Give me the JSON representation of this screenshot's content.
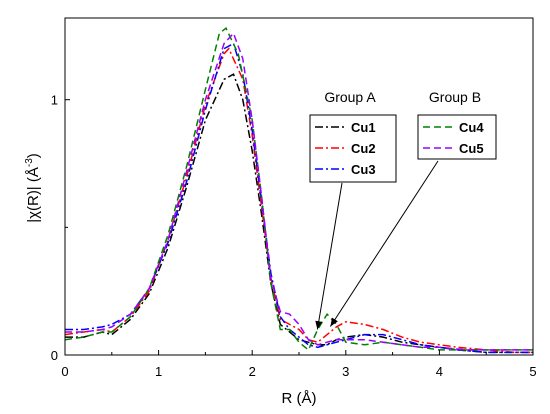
{
  "chart_data": {
    "type": "line",
    "title": "",
    "xlabel": "R (Å)",
    "ylabel_parts": [
      "|χ(R)| (Å",
      "-3",
      ")"
    ],
    "xlim": [
      0,
      5
    ],
    "ylim": [
      0,
      1.32
    ],
    "xticks": [
      0,
      1,
      2,
      3,
      4,
      5
    ],
    "xtick_labels": [
      "0",
      "1",
      "2",
      "3",
      "4",
      "5"
    ],
    "yticks": [
      0,
      1
    ],
    "ytick_labels": [
      "0",
      "1"
    ],
    "grid": false,
    "legend_groups": [
      {
        "title": "Group A",
        "series": [
          "Cu1",
          "Cu2",
          "Cu3"
        ]
      },
      {
        "title": "Group B",
        "series": [
          "Cu4",
          "Cu5"
        ]
      }
    ],
    "annotation_target": [
      2.75,
      0.1
    ],
    "series": [
      {
        "name": "Cu1",
        "color": "#000000",
        "dash": "dash-dot",
        "points": [
          [
            0,
            0.07
          ],
          [
            0.2,
            0.07
          ],
          [
            0.4,
            0.09
          ],
          [
            0.5,
            0.08
          ],
          [
            0.7,
            0.14
          ],
          [
            0.9,
            0.24
          ],
          [
            1.1,
            0.42
          ],
          [
            1.3,
            0.66
          ],
          [
            1.5,
            0.92
          ],
          [
            1.7,
            1.08
          ],
          [
            1.8,
            1.1
          ],
          [
            1.9,
            1.0
          ],
          [
            2.0,
            0.8
          ],
          [
            2.1,
            0.55
          ],
          [
            2.2,
            0.28
          ],
          [
            2.3,
            0.12
          ],
          [
            2.4,
            0.09
          ],
          [
            2.5,
            0.06
          ],
          [
            2.6,
            0.05
          ],
          [
            2.7,
            0.04
          ],
          [
            2.8,
            0.04
          ],
          [
            2.9,
            0.06
          ],
          [
            3.0,
            0.07
          ],
          [
            3.2,
            0.08
          ],
          [
            3.4,
            0.07
          ],
          [
            3.6,
            0.05
          ],
          [
            3.8,
            0.04
          ],
          [
            4.0,
            0.03
          ],
          [
            4.2,
            0.02
          ],
          [
            4.5,
            0.01
          ],
          [
            4.8,
            0.01
          ],
          [
            5.0,
            0.01
          ]
        ]
      },
      {
        "name": "Cu2",
        "color": "#ff0000",
        "dash": "dash-dot",
        "points": [
          [
            0,
            0.08
          ],
          [
            0.2,
            0.09
          ],
          [
            0.4,
            0.1
          ],
          [
            0.5,
            0.09
          ],
          [
            0.7,
            0.15
          ],
          [
            0.9,
            0.25
          ],
          [
            1.1,
            0.45
          ],
          [
            1.3,
            0.7
          ],
          [
            1.5,
            0.98
          ],
          [
            1.7,
            1.18
          ],
          [
            1.75,
            1.2
          ],
          [
            1.9,
            1.08
          ],
          [
            2.0,
            0.86
          ],
          [
            2.1,
            0.58
          ],
          [
            2.2,
            0.3
          ],
          [
            2.3,
            0.14
          ],
          [
            2.4,
            0.12
          ],
          [
            2.5,
            0.1
          ],
          [
            2.6,
            0.06
          ],
          [
            2.7,
            0.05
          ],
          [
            2.8,
            0.08
          ],
          [
            2.9,
            0.11
          ],
          [
            3.0,
            0.13
          ],
          [
            3.2,
            0.12
          ],
          [
            3.4,
            0.1
          ],
          [
            3.6,
            0.07
          ],
          [
            3.8,
            0.05
          ],
          [
            4.0,
            0.04
          ],
          [
            4.2,
            0.03
          ],
          [
            4.5,
            0.02
          ],
          [
            4.8,
            0.01
          ],
          [
            5.0,
            0.01
          ]
        ]
      },
      {
        "name": "Cu3",
        "color": "#0000ff",
        "dash": "dash-dot",
        "points": [
          [
            0,
            0.1
          ],
          [
            0.2,
            0.1
          ],
          [
            0.4,
            0.11
          ],
          [
            0.5,
            0.12
          ],
          [
            0.7,
            0.16
          ],
          [
            0.9,
            0.26
          ],
          [
            1.1,
            0.44
          ],
          [
            1.3,
            0.68
          ],
          [
            1.5,
            0.96
          ],
          [
            1.7,
            1.2
          ],
          [
            1.8,
            1.22
          ],
          [
            1.9,
            1.1
          ],
          [
            2.0,
            0.88
          ],
          [
            2.1,
            0.6
          ],
          [
            2.2,
            0.32
          ],
          [
            2.3,
            0.15
          ],
          [
            2.4,
            0.1
          ],
          [
            2.5,
            0.07
          ],
          [
            2.6,
            0.04
          ],
          [
            2.7,
            0.03
          ],
          [
            2.8,
            0.04
          ],
          [
            2.9,
            0.05
          ],
          [
            3.0,
            0.06
          ],
          [
            3.2,
            0.08
          ],
          [
            3.4,
            0.08
          ],
          [
            3.6,
            0.06
          ],
          [
            3.8,
            0.04
          ],
          [
            4.0,
            0.03
          ],
          [
            4.2,
            0.02
          ],
          [
            4.5,
            0.01
          ],
          [
            4.8,
            0.01
          ],
          [
            5.0,
            0.01
          ]
        ]
      },
      {
        "name": "Cu4",
        "color": "#008000",
        "dash": "dash",
        "points": [
          [
            0,
            0.06
          ],
          [
            0.2,
            0.07
          ],
          [
            0.4,
            0.09
          ],
          [
            0.5,
            0.09
          ],
          [
            0.7,
            0.15
          ],
          [
            0.9,
            0.26
          ],
          [
            1.1,
            0.47
          ],
          [
            1.3,
            0.74
          ],
          [
            1.5,
            1.04
          ],
          [
            1.65,
            1.26
          ],
          [
            1.72,
            1.28
          ],
          [
            1.85,
            1.18
          ],
          [
            2.0,
            0.92
          ],
          [
            2.1,
            0.62
          ],
          [
            2.2,
            0.28
          ],
          [
            2.3,
            0.1
          ],
          [
            2.4,
            0.1
          ],
          [
            2.5,
            0.05
          ],
          [
            2.6,
            0.02
          ],
          [
            2.7,
            0.1
          ],
          [
            2.8,
            0.16
          ],
          [
            2.9,
            0.12
          ],
          [
            3.0,
            0.05
          ],
          [
            3.2,
            0.04
          ],
          [
            3.4,
            0.05
          ],
          [
            3.6,
            0.04
          ],
          [
            3.8,
            0.03
          ],
          [
            4.0,
            0.02
          ],
          [
            4.3,
            0.02
          ],
          [
            4.6,
            0.02
          ],
          [
            5.0,
            0.02
          ]
        ]
      },
      {
        "name": "Cu5",
        "color": "#9a00ff",
        "dash": "dash",
        "points": [
          [
            0,
            0.09
          ],
          [
            0.2,
            0.09
          ],
          [
            0.4,
            0.1
          ],
          [
            0.5,
            0.11
          ],
          [
            0.7,
            0.16
          ],
          [
            0.9,
            0.26
          ],
          [
            1.1,
            0.45
          ],
          [
            1.3,
            0.72
          ],
          [
            1.5,
            1.0
          ],
          [
            1.7,
            1.22
          ],
          [
            1.8,
            1.26
          ],
          [
            1.9,
            1.16
          ],
          [
            2.0,
            0.92
          ],
          [
            2.1,
            0.62
          ],
          [
            2.2,
            0.3
          ],
          [
            2.3,
            0.17
          ],
          [
            2.4,
            0.16
          ],
          [
            2.5,
            0.12
          ],
          [
            2.6,
            0.06
          ],
          [
            2.7,
            0.04
          ],
          [
            2.8,
            0.05
          ],
          [
            2.9,
            0.06
          ],
          [
            3.0,
            0.06
          ],
          [
            3.2,
            0.06
          ],
          [
            3.4,
            0.05
          ],
          [
            3.6,
            0.04
          ],
          [
            3.8,
            0.03
          ],
          [
            4.0,
            0.03
          ],
          [
            4.3,
            0.02
          ],
          [
            4.6,
            0.02
          ],
          [
            5.0,
            0.02
          ]
        ]
      }
    ]
  }
}
